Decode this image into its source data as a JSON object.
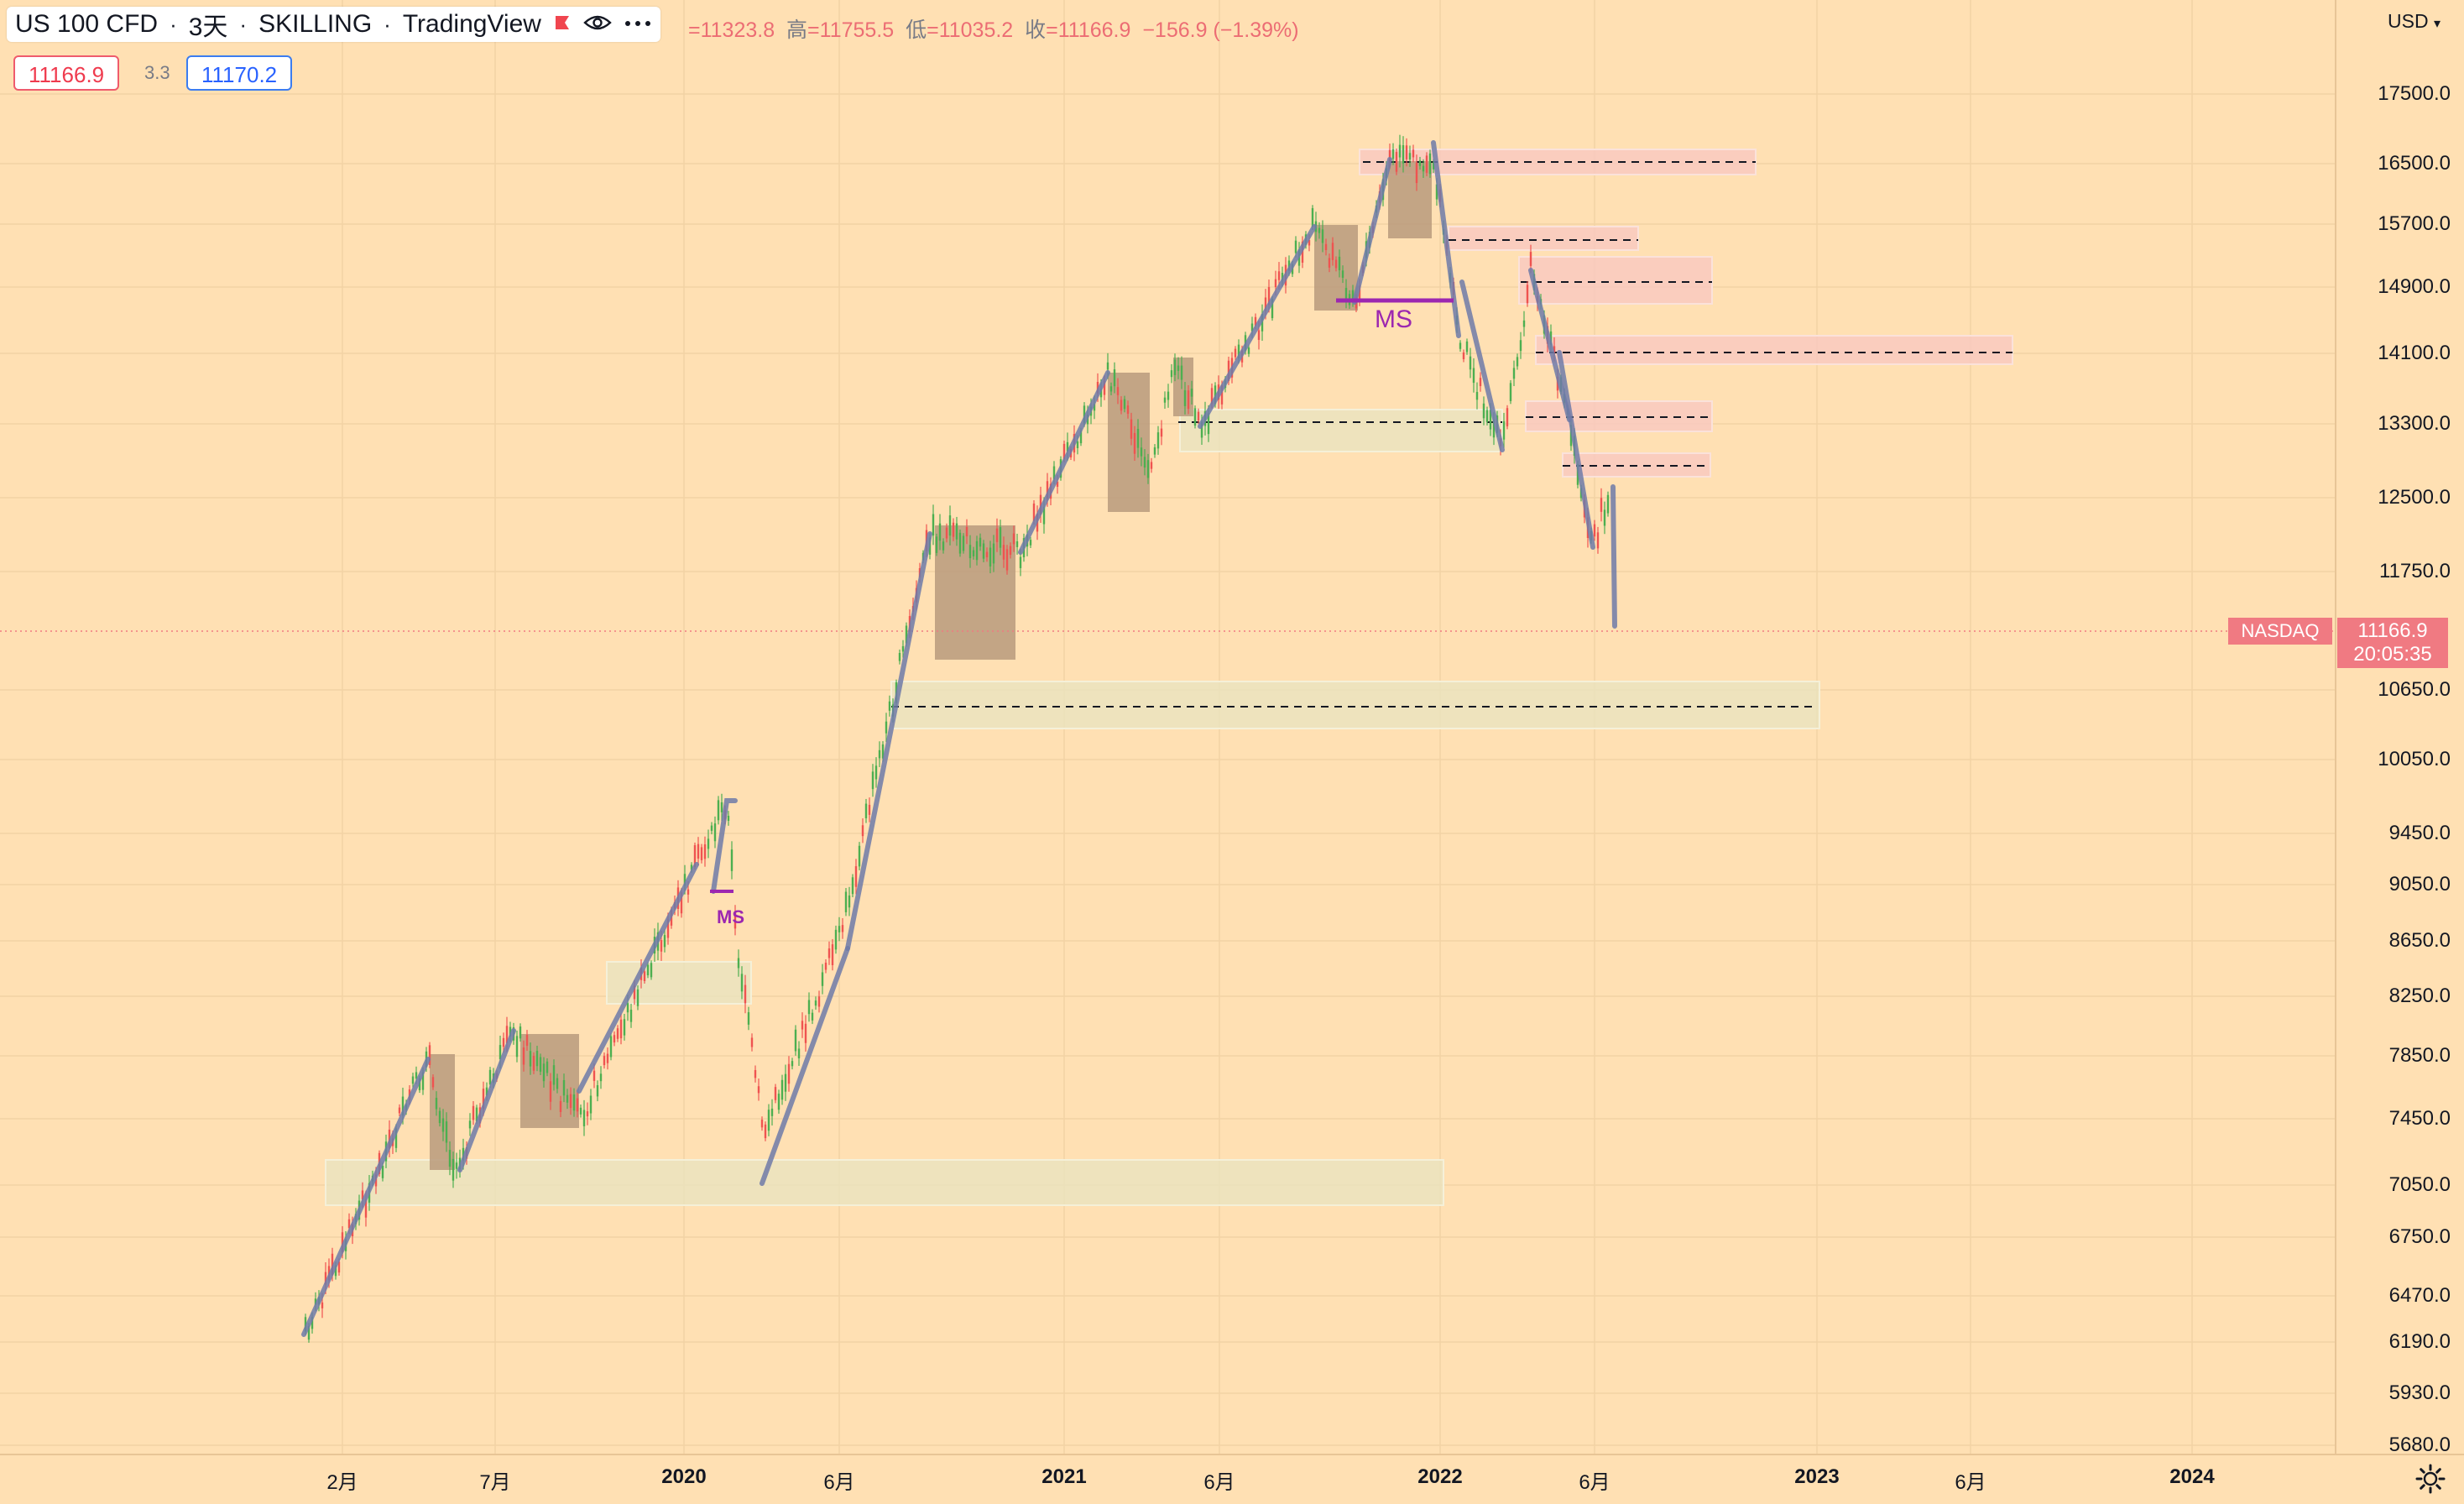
{
  "header": {
    "symbol": "US 100 CFD",
    "interval": "3天",
    "exchange": "SKILLING",
    "source": "TradingView",
    "dot1": "·",
    "dot2": "·",
    "dot3": "·"
  },
  "ohlc": {
    "open_value": "=11323.8",
    "high_key": "高",
    "high_value": "=11755.5",
    "low_key": "低",
    "low_value": "=11035.2",
    "close_key": "收",
    "close_value": "=11166.9",
    "change": "−156.9 (−1.39%)"
  },
  "prices": {
    "sell": "11166.9",
    "spread": "3.3",
    "buy": "11170.2"
  },
  "price_axis": {
    "currency": "USD",
    "ticks": [
      "17500.0",
      "16500.0",
      "15700.0",
      "14900.0",
      "14100.0",
      "13300.0",
      "12500.0",
      "11750.0",
      "10650.0",
      "10050.0",
      "9450.0",
      "9050.0",
      "8650.0",
      "8250.0",
      "7850.0",
      "7450.0",
      "7050.0",
      "6750.0",
      "6470.0",
      "6190.0",
      "5930.0",
      "5680.0"
    ],
    "current_price": "11166.9",
    "countdown": "20:05:35",
    "current_tag": "NASDAQ"
  },
  "time_axis": {
    "labels": [
      "2月",
      "7月",
      "2020",
      "6月",
      "2021",
      "6月",
      "2022",
      "6月",
      "2023",
      "6月",
      "2024"
    ]
  },
  "annotations": {
    "ms_large": "MS",
    "ms_small": "MS"
  },
  "colors": {
    "background": "#ffe0b3",
    "up": "#4caf50",
    "down": "#ef5350",
    "trend_line": "#6e7aa8",
    "ms_line": "#9c27b0",
    "supply_zone": "#f9c9c0",
    "demand_zone": "#eae3bf",
    "consolidation": "#b89a7c",
    "current_price_bg": "#f07a82"
  },
  "icons": {
    "flag": "flag-icon",
    "eye": "eye-icon",
    "more": "more-icon",
    "gear": "gear-icon"
  }
}
